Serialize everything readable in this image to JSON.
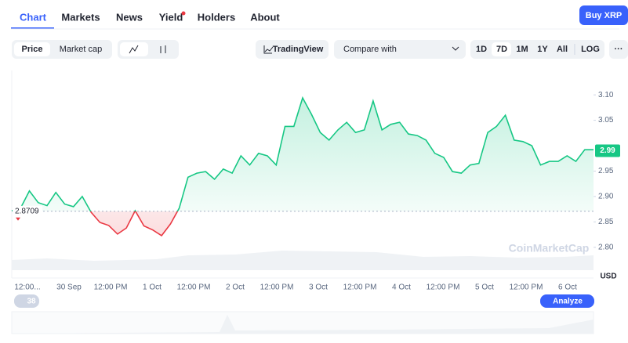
{
  "nav": {
    "tabs": [
      "Chart",
      "Markets",
      "News",
      "Yield",
      "Holders",
      "About"
    ],
    "buy_button": "Buy XRP"
  },
  "toolbar": {
    "price": "Price",
    "market_cap": "Market cap",
    "tradingview": "TradingView",
    "compare": "Compare with",
    "ranges": [
      "1D",
      "7D",
      "1M",
      "1Y",
      "All"
    ],
    "log": "LOG",
    "more": "···"
  },
  "chart_data": {
    "type": "line",
    "x_labels": [
      "12:00...",
      "30 Sep",
      "12:00 PM",
      "1 Oct",
      "12:00 PM",
      "2 Oct",
      "12:00 PM",
      "3 Oct",
      "12:00 PM",
      "4 Oct",
      "12:00 PM",
      "5 Oct",
      "12:00 PM",
      "6 Oct"
    ],
    "values": [
      2.872,
      2.877,
      2.911,
      2.888,
      2.882,
      2.908,
      2.885,
      2.88,
      2.9,
      2.869,
      2.849,
      2.843,
      2.826,
      2.838,
      2.872,
      2.842,
      2.834,
      2.823,
      2.846,
      2.877,
      2.938,
      2.946,
      2.949,
      2.934,
      2.954,
      2.946,
      2.98,
      2.962,
      2.985,
      2.98,
      2.962,
      3.038,
      3.038,
      3.094,
      3.062,
      3.026,
      3.011,
      3.031,
      3.046,
      3.026,
      3.031,
      3.088,
      3.031,
      3.042,
      3.046,
      3.023,
      3.02,
      3.011,
      2.985,
      2.977,
      2.949,
      2.946,
      2.962,
      2.965,
      3.026,
      3.038,
      3.06,
      3.011,
      3.008,
      3.0,
      2.962,
      2.969,
      2.969,
      2.98,
      2.969,
      2.992,
      2.992
    ],
    "up_color": "#16c784",
    "down_color": "#ea3943",
    "reference_value": 2.8709,
    "last_price": 2.99,
    "ylim": [
      2.755,
      3.148
    ],
    "yticks": [
      {
        "value": 2.8,
        "label": "2.80"
      },
      {
        "value": 2.85,
        "label": "2.85"
      },
      {
        "value": 2.9,
        "label": "2.90"
      },
      {
        "value": 2.95,
        "label": "2.95"
      },
      {
        "value": 3.05,
        "label": "3.05"
      },
      {
        "value": 3.1,
        "label": "3.10"
      }
    ],
    "y_unit": "USD",
    "watermark": "CoinMarketCap"
  },
  "footer": {
    "badge": "38",
    "analyze": "Analyze"
  }
}
